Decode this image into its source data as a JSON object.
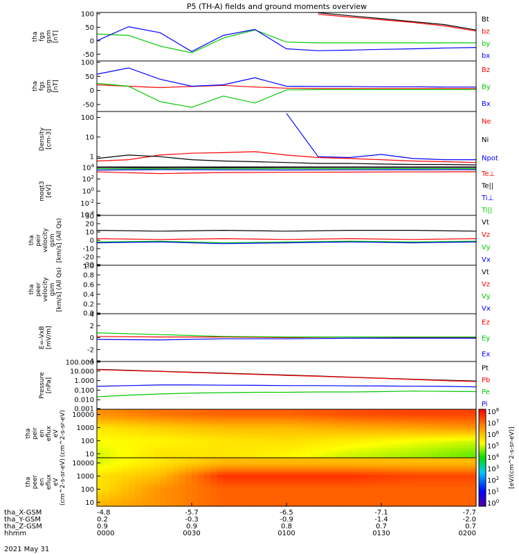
{
  "title": "P5 (TH-A) fields and ground moments overview",
  "date_label": "2021 May 31",
  "orbit_rows": [
    {
      "label": "tha_X-GSM",
      "values": [
        "-4.8",
        "-5.7",
        "-6.5",
        "-7.1",
        "-7.7"
      ]
    },
    {
      "label": "tha_Y-GSM",
      "values": [
        "0.2",
        "-0.3",
        "-0.9",
        "-1.4",
        "-2.0"
      ]
    },
    {
      "label": "tha_Z-GSM",
      "values": [
        "0.9",
        "0.9",
        "0.8",
        "0.7",
        "0.7"
      ]
    },
    {
      "label": "hhmm",
      "values": [
        "0000",
        "0030",
        "0100",
        "0130",
        "0200"
      ]
    }
  ],
  "colorbar_label": "[eV/(cm^2-s-sr-eV)]",
  "colorbar_ticks": [
    "10^8",
    "10^7",
    "10^6",
    "10^5",
    "10^4",
    "10^3",
    "10^2",
    "10^1",
    "10^0"
  ],
  "chart_data": [
    {
      "type": "line",
      "ylabel": [
        "tha",
        "fgs",
        "gsm",
        "[nT]"
      ],
      "ylim": [
        -75,
        105
      ],
      "yticks": [
        "100",
        "50",
        "0",
        "-50"
      ],
      "ytick_values": [
        100,
        50,
        0,
        -50
      ],
      "x": [
        0,
        10,
        20,
        30,
        40,
        50,
        60,
        70,
        80,
        90,
        100,
        110,
        120
      ],
      "series": [
        {
          "name": "Bt",
          "color": "#000000",
          "values": [
            null,
            null,
            null,
            null,
            null,
            null,
            null,
            104,
            93,
            82,
            71,
            60,
            40
          ]
        },
        {
          "name": "bz",
          "color": "#ff0000",
          "values": [
            null,
            null,
            null,
            null,
            null,
            null,
            null,
            98,
            88,
            78,
            68,
            55,
            36
          ]
        },
        {
          "name": "by",
          "color": "#00c800",
          "values": [
            25,
            20,
            -20,
            -45,
            10,
            40,
            -5,
            -8,
            -8,
            -8,
            -8,
            -8,
            -8
          ]
        },
        {
          "name": "bx",
          "color": "#0000ff",
          "values": [
            0,
            52,
            30,
            -40,
            20,
            42,
            -30,
            -37,
            -35,
            -32,
            -30,
            -27,
            -25
          ]
        }
      ]
    },
    {
      "type": "line",
      "ylabel": [
        "tha",
        "fgs",
        "gsm",
        "[nT]"
      ],
      "ylim": [
        -75,
        105
      ],
      "yticks": [
        "100",
        "50",
        "0",
        "-50"
      ],
      "ytick_values": [
        100,
        50,
        0,
        -50
      ],
      "x": [
        0,
        10,
        20,
        30,
        40,
        50,
        60,
        70,
        80,
        90,
        100,
        110,
        120
      ],
      "series": [
        {
          "name": "Bz",
          "color": "#ff0000",
          "values": [
            20,
            15,
            10,
            14,
            18,
            12,
            8,
            7,
            7,
            7,
            7,
            7,
            7
          ]
        },
        {
          "name": "By",
          "color": "#00c800",
          "values": [
            25,
            15,
            -40,
            -60,
            -20,
            -45,
            2,
            3,
            3,
            3,
            3,
            3,
            3
          ]
        },
        {
          "name": "Bx",
          "color": "#0000ff",
          "values": [
            58,
            80,
            40,
            15,
            20,
            45,
            15,
            14,
            14,
            13,
            13,
            12,
            12
          ]
        }
      ]
    },
    {
      "type": "line",
      "scale": "log",
      "ylabel": [
        "Density",
        "[cm-3]"
      ],
      "ylim": [
        0.3,
        200
      ],
      "yticks": [
        "100",
        "10",
        "1"
      ],
      "ytick_values": [
        100,
        10,
        1
      ],
      "x": [
        0,
        10,
        20,
        30,
        40,
        50,
        60,
        70,
        80,
        90,
        100,
        110,
        120
      ],
      "series": [
        {
          "name": "Ne",
          "color": "#ff0000",
          "values": [
            0.6,
            0.7,
            1.2,
            1.5,
            1.6,
            1.8,
            1.2,
            0.9,
            0.8,
            0.7,
            0.6,
            0.55,
            0.5
          ]
        },
        {
          "name": "Ni",
          "color": "#000000",
          "values": [
            0.8,
            1.2,
            1.0,
            0.7,
            0.6,
            0.55,
            0.5,
            0.45,
            0.45,
            0.42,
            0.4,
            0.4,
            0.38
          ]
        },
        {
          "name": "Npot",
          "color": "#0000ff",
          "values": [
            null,
            null,
            null,
            null,
            null,
            null,
            160,
            1.0,
            0.9,
            1.3,
            0.8,
            0.7,
            0.7
          ]
        }
      ]
    },
    {
      "type": "line",
      "scale": "log",
      "ylabel": [
        "moqt3",
        "[eV]"
      ],
      "ylim": [
        0.0001,
        10000
      ],
      "yticks": [
        "10^4",
        "10^2",
        "10^0",
        "10^-2",
        "10^-4"
      ],
      "ytick_values": [
        10000,
        100,
        1,
        0.01,
        0.0001
      ],
      "x": [
        0,
        20,
        40,
        60,
        80,
        100,
        120
      ],
      "series": [
        {
          "name": "Te⊥",
          "color": "#ff0000",
          "values": [
            1500,
            800,
            1200,
            1300,
            1400,
            1500,
            1600
          ]
        },
        {
          "name": "Te||",
          "color": "#000000",
          "values": [
            8000,
            7000,
            7500,
            7800,
            8000,
            8200,
            8000
          ]
        },
        {
          "name": "Ti⊥",
          "color": "#0000ff",
          "values": [
            3000,
            3500,
            3200,
            3100,
            3300,
            3400,
            3500
          ]
        },
        {
          "name": "Ti||",
          "color": "#00c800",
          "values": [
            5000,
            4500,
            4800,
            4900,
            5000,
            5100,
            5000
          ]
        }
      ]
    },
    {
      "type": "line",
      "ylabel": [
        "tha",
        "peir",
        "velocity",
        "gsm",
        "[km/s] (All Qs)"
      ],
      "ylim": [
        -30,
        30
      ],
      "yticks": [
        "30",
        "20",
        "10",
        "0",
        "-10",
        "-20",
        "-30"
      ],
      "ytick_values": [
        30,
        20,
        10,
        0,
        -10,
        -20,
        -30
      ],
      "x": [
        0,
        20,
        40,
        60,
        80,
        100,
        120
      ],
      "series": [
        {
          "name": "Vt",
          "color": "#000000",
          "values": [
            12,
            11,
            12,
            11,
            12,
            12,
            11
          ]
        },
        {
          "name": "Vz",
          "color": "#ff0000",
          "values": [
            2,
            1,
            2,
            1,
            2,
            1,
            2
          ]
        },
        {
          "name": "Vy",
          "color": "#00c800",
          "values": [
            -2,
            -1,
            -3,
            -2,
            -1,
            -2,
            -1
          ]
        },
        {
          "name": "Vx",
          "color": "#0000ff",
          "values": [
            -3,
            -2,
            -4,
            -3,
            -2,
            -3,
            -2
          ]
        }
      ]
    },
    {
      "type": "line",
      "ylabel": [
        "tha",
        "peer",
        "velocity",
        "gsm",
        "[km/s] (All Qs)"
      ],
      "ylim": [
        0,
        1
      ],
      "yticks": [
        "1.0",
        "0.8",
        "0.6",
        "0.4",
        "0.2",
        "0.0"
      ],
      "ytick_values": [
        1.0,
        0.8,
        0.6,
        0.4,
        0.2,
        0.0
      ],
      "x": [],
      "series": [
        {
          "name": "Vt",
          "color": "#000000",
          "values": []
        },
        {
          "name": "Vz",
          "color": "#ff0000",
          "values": []
        },
        {
          "name": "Vy",
          "color": "#00c800",
          "values": []
        },
        {
          "name": "Vx",
          "color": "#0000ff",
          "values": []
        }
      ]
    },
    {
      "type": "line",
      "ylabel": [
        "E=-VxB",
        "[mV/m]"
      ],
      "ylim": [
        -4,
        4
      ],
      "yticks": [
        "4",
        "2",
        "0",
        "-2",
        "-4"
      ],
      "ytick_values": [
        4,
        2,
        0,
        -2,
        -4
      ],
      "x": [
        0,
        20,
        40,
        60,
        80,
        100,
        120
      ],
      "series": [
        {
          "name": "Ez",
          "color": "#ff0000",
          "values": [
            0.2,
            0.1,
            0.1,
            0.0,
            0.1,
            0.0,
            0.0
          ]
        },
        {
          "name": "Ey",
          "color": "#00c800",
          "values": [
            0.8,
            0.5,
            0.2,
            0.1,
            0.1,
            0.1,
            0.1
          ]
        },
        {
          "name": "Ex",
          "color": "#0000ff",
          "values": [
            -0.3,
            -0.4,
            -0.2,
            -0.2,
            -0.1,
            -0.1,
            -0.1
          ]
        }
      ]
    },
    {
      "type": "line",
      "scale": "log",
      "ylabel": [
        "Pressure",
        "[nPa]"
      ],
      "ylim": [
        0.001,
        100
      ],
      "yticks": [
        "100.000",
        "10.000",
        "1.000",
        "0.100",
        "0.010",
        "0.001"
      ],
      "ytick_values": [
        100,
        10,
        1,
        0.1,
        0.01,
        0.001
      ],
      "x": [
        0,
        10,
        20,
        30,
        40,
        50,
        60,
        70,
        80,
        90,
        100,
        110,
        120
      ],
      "series": [
        {
          "name": "Pt",
          "color": "#000000",
          "values": [
            15,
            12,
            9.5,
            7.5,
            6,
            4.8,
            3.8,
            3.0,
            2.3,
            1.8,
            1.4,
            1.1,
            0.9
          ]
        },
        {
          "name": "Pb",
          "color": "#ff0000",
          "values": [
            14,
            11,
            9,
            7,
            5.6,
            4.5,
            3.5,
            2.8,
            2.2,
            1.7,
            1.3,
            1.0,
            0.8
          ]
        },
        {
          "name": "Pe",
          "color": "#00c800",
          "values": [
            0.02,
            0.03,
            0.04,
            0.05,
            0.055,
            0.06,
            0.06,
            0.065,
            0.065,
            0.07,
            0.08,
            0.075,
            0.07
          ]
        },
        {
          "name": "Pi",
          "color": "#0000ff",
          "values": [
            0.25,
            0.3,
            0.35,
            0.35,
            0.33,
            0.32,
            0.3,
            0.3,
            0.28,
            0.27,
            0.26,
            0.25,
            0.22
          ]
        }
      ]
    },
    {
      "type": "heatmap",
      "ylabel": [
        "tha",
        "peir",
        "en",
        "eflux",
        "eV",
        "(cm^2-s-sr-eV)"
      ],
      "yticks": [
        "10000",
        "1000",
        "100",
        "10"
      ],
      "ytick_values": [
        10000,
        1000,
        100,
        10
      ],
      "ylim": [
        5,
        25000
      ],
      "log_range": [
        0,
        8
      ],
      "x": [
        0,
        20,
        40,
        60,
        80,
        100,
        120
      ],
      "y": [
        10,
        100,
        1000,
        10000
      ],
      "values_log10": [
        [
          5.0,
          5.5,
          5.5,
          5.3,
          5.0,
          4.8,
          4.5
        ],
        [
          5.2,
          5.3,
          5.5,
          5.6,
          5.4,
          5.2,
          5.0
        ],
        [
          5.5,
          5.8,
          6.0,
          6.0,
          6.2,
          6.3,
          6.5
        ],
        [
          6.5,
          6.8,
          7.0,
          7.0,
          7.2,
          7.3,
          7.3
        ]
      ]
    },
    {
      "type": "heatmap",
      "ylabel": [
        "tha",
        "peer",
        "en",
        "eflux",
        "eV",
        "(cm^2-s-sr-eV)"
      ],
      "yticks": [
        "10000",
        "1000",
        "100",
        "10"
      ],
      "ytick_values": [
        10000,
        1000,
        100,
        10
      ],
      "ylim": [
        5,
        25000
      ],
      "log_range": [
        0,
        8
      ],
      "x": [
        0,
        20,
        40,
        60,
        80,
        100,
        120
      ],
      "y": [
        10,
        100,
        1000,
        10000
      ],
      "values_log10": [
        [
          6.0,
          6.5,
          7.0,
          7.0,
          7.0,
          7.0,
          7.0
        ],
        [
          5.5,
          6.5,
          7.0,
          7.0,
          7.0,
          7.0,
          7.0
        ],
        [
          5.5,
          6.0,
          7.5,
          7.5,
          7.5,
          7.3,
          7.3
        ],
        [
          5.0,
          5.5,
          6.0,
          6.0,
          6.0,
          6.0,
          6.0
        ]
      ]
    }
  ]
}
